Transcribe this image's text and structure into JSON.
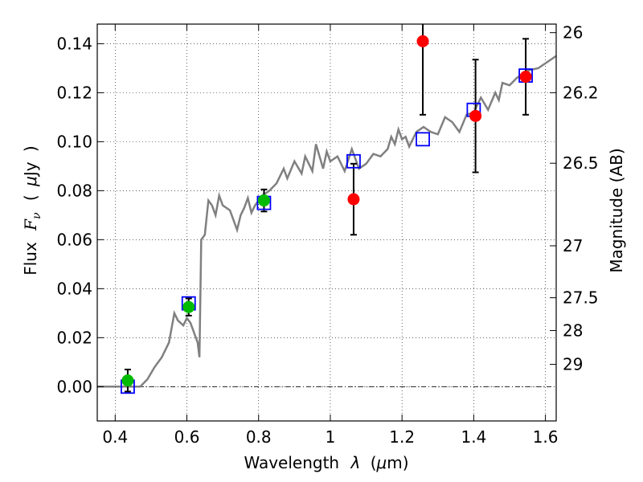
{
  "chart_data": {
    "type": "scatter",
    "title": "",
    "xlabel_parts": [
      "Wavelength",
      "λ",
      "(",
      "μ",
      "m)"
    ],
    "ylabel_parts": [
      "Flux",
      "F",
      "ν",
      "(",
      "μ",
      "Jy",
      ")"
    ],
    "y2label": "Magnitude (AB)",
    "xlim": [
      0.35,
      1.63
    ],
    "ylim": [
      -0.014,
      0.148
    ],
    "grid": true,
    "x_ticks": [
      {
        "value": 0.4,
        "label": "0.4"
      },
      {
        "value": 0.6,
        "label": "0.6"
      },
      {
        "value": 0.8,
        "label": "0.8"
      },
      {
        "value": 1.0,
        "label": "1"
      },
      {
        "value": 1.2,
        "label": "1.2"
      },
      {
        "value": 1.4,
        "label": "1.4"
      },
      {
        "value": 1.6,
        "label": "1.6"
      }
    ],
    "y_ticks": [
      {
        "value": 0.0,
        "label": "0.00"
      },
      {
        "value": 0.02,
        "label": "0.02"
      },
      {
        "value": 0.04,
        "label": "0.04"
      },
      {
        "value": 0.06,
        "label": "0.06"
      },
      {
        "value": 0.08,
        "label": "0.08"
      },
      {
        "value": 0.1,
        "label": "0.10"
      },
      {
        "value": 0.12,
        "label": "0.12"
      },
      {
        "value": 0.14,
        "label": "0.14"
      }
    ],
    "mag_ticks": [
      {
        "flux": 0.1445,
        "label": "26"
      },
      {
        "flux": 0.12,
        "label": "26.2"
      },
      {
        "flux": 0.0912,
        "label": "26.5"
      },
      {
        "flux": 0.0575,
        "label": "27"
      },
      {
        "flux": 0.0363,
        "label": "27.5"
      },
      {
        "flux": 0.0229,
        "label": "28"
      },
      {
        "flux": 0.0091,
        "label": "29"
      }
    ],
    "model_spectrum": {
      "color": "#808080",
      "x": [
        0.35,
        0.47,
        0.49,
        0.51,
        0.53,
        0.55,
        0.565,
        0.575,
        0.59,
        0.6,
        0.61,
        0.62,
        0.63,
        0.635,
        0.64,
        0.65,
        0.66,
        0.67,
        0.68,
        0.69,
        0.7,
        0.72,
        0.74,
        0.75,
        0.76,
        0.77,
        0.78,
        0.79,
        0.8,
        0.81,
        0.83,
        0.85,
        0.87,
        0.88,
        0.9,
        0.92,
        0.93,
        0.95,
        0.96,
        0.98,
        0.99,
        1.0,
        1.02,
        1.04,
        1.06,
        1.08,
        1.1,
        1.12,
        1.14,
        1.16,
        1.17,
        1.18,
        1.19,
        1.2,
        1.21,
        1.22,
        1.24,
        1.26,
        1.28,
        1.3,
        1.32,
        1.34,
        1.36,
        1.38,
        1.4,
        1.42,
        1.44,
        1.46,
        1.47,
        1.48,
        1.5,
        1.52,
        1.55,
        1.58,
        1.61,
        1.63
      ],
      "y": [
        0.0,
        0.0,
        0.003,
        0.008,
        0.012,
        0.018,
        0.03,
        0.027,
        0.025,
        0.028,
        0.026,
        0.022,
        0.018,
        0.012,
        0.06,
        0.062,
        0.076,
        0.074,
        0.07,
        0.078,
        0.074,
        0.072,
        0.064,
        0.07,
        0.073,
        0.077,
        0.071,
        0.074,
        0.076,
        0.078,
        0.08,
        0.083,
        0.089,
        0.085,
        0.092,
        0.087,
        0.094,
        0.088,
        0.099,
        0.089,
        0.096,
        0.092,
        0.094,
        0.088,
        0.097,
        0.089,
        0.091,
        0.095,
        0.094,
        0.097,
        0.102,
        0.099,
        0.105,
        0.101,
        0.102,
        0.098,
        0.104,
        0.106,
        0.104,
        0.103,
        0.11,
        0.108,
        0.104,
        0.111,
        0.112,
        0.118,
        0.113,
        0.12,
        0.117,
        0.124,
        0.123,
        0.126,
        0.129,
        0.13,
        0.133,
        0.135
      ]
    },
    "model_points": {
      "color": "#0000ff",
      "x": [
        0.435,
        0.605,
        0.815,
        1.065,
        1.258,
        1.4,
        1.545
      ],
      "y": [
        0.0,
        0.034,
        0.075,
        0.092,
        0.101,
        0.113,
        0.127
      ]
    },
    "detections_optical": {
      "color": "#00bb00",
      "x": [
        0.435,
        0.605,
        0.815
      ],
      "y": [
        0.0025,
        0.0325,
        0.076
      ],
      "yerr": [
        0.0045,
        0.0035,
        0.0045
      ]
    },
    "detections_nir": {
      "color": "#ff0000",
      "x": [
        1.065,
        1.258,
        1.405,
        1.545
      ],
      "y": [
        0.0765,
        0.141,
        0.1105,
        0.1265
      ],
      "yerr": [
        0.0145,
        0.03,
        0.023,
        0.0155
      ]
    },
    "zero_line": {
      "y": 0.0,
      "color": "#000000"
    }
  }
}
